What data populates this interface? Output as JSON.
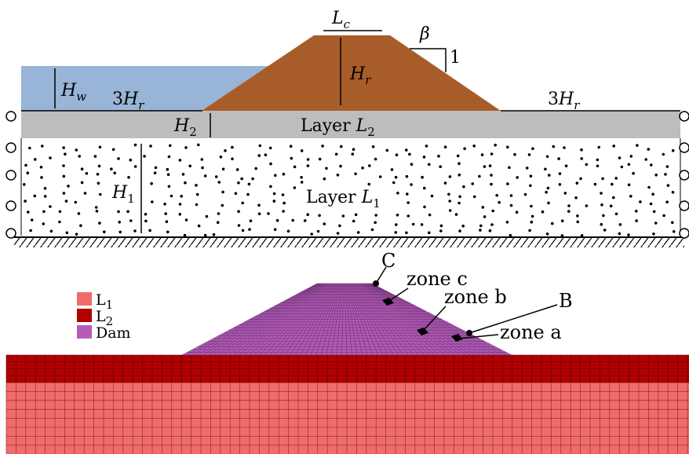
{
  "upper": {
    "lc": {
      "base": "L",
      "sub": "c"
    },
    "beta": "β",
    "one": "1",
    "hw": {
      "base": "H",
      "sub": "w"
    },
    "hr": {
      "base": "H",
      "sub": "r"
    },
    "three_hr_left": {
      "coef": "3",
      "base": "H",
      "sub": "r"
    },
    "three_hr_right": {
      "coef": "3",
      "base": "H",
      "sub": "r"
    },
    "h2": {
      "base": "H",
      "sub": "2"
    },
    "layer_l2": {
      "word": "Layer ",
      "base": "L",
      "sub": "2"
    },
    "h1": {
      "base": "H",
      "sub": "1"
    },
    "layer_l1": {
      "word": "Layer ",
      "base": "L",
      "sub": "1"
    }
  },
  "lower": {
    "point_c": "C",
    "point_b": "B",
    "zone_a": "zone a",
    "zone_b": "zone b",
    "zone_c": "zone c",
    "legend": [
      {
        "base": "L",
        "sub": "1",
        "color": "#f26b6b"
      },
      {
        "base": "L",
        "sub": "2",
        "color": "#b00000"
      },
      {
        "base": "Dam",
        "sub": "",
        "color": "#b45cb8"
      }
    ]
  },
  "colors": {
    "water": "#98b4d6",
    "dam": "#a85c2a",
    "layer2": "#bdbdbd",
    "mesh_l1": "#f26b6b",
    "mesh_l2": "#b00000",
    "mesh_dam": "#b45cb8"
  }
}
